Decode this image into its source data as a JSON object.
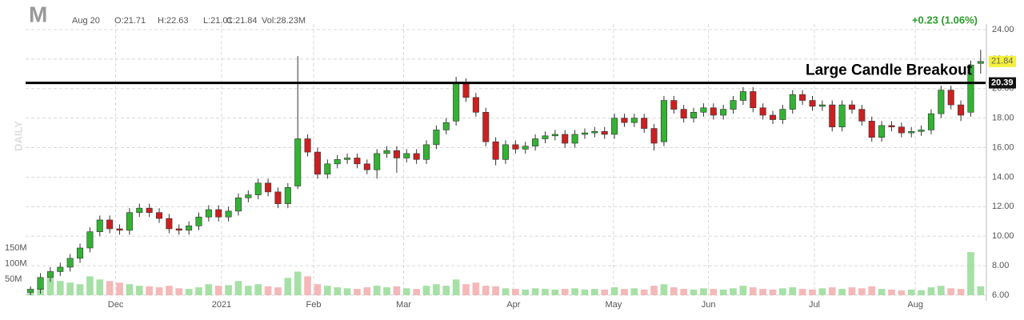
{
  "header": {
    "symbol": "M",
    "date": "Aug 20",
    "open": "O:21.71",
    "high": "H:22.63",
    "low": "L:21.01",
    "close": "C:21.84",
    "volume": "Vol:28.23M",
    "change": "+0.23 (1.06%)"
  },
  "chart_data": {
    "type": "candlestick",
    "watermark": "DAILY",
    "annotation": "Large Candle Breakout",
    "level": 20.39,
    "last": 21.84,
    "up_color": "#33b233",
    "down_color": "#cc2020",
    "up_volume_color": "#a6e0a6",
    "down_volume_color": "#f4b8b8",
    "xlim": [
      -0.5,
      96.5
    ],
    "xticks": [
      {
        "value": 8.6,
        "label": "Dec"
      },
      {
        "value": 19.3,
        "label": "2021"
      },
      {
        "value": 28.6,
        "label": "Feb"
      },
      {
        "value": 37.7,
        "label": "Mar"
      },
      {
        "value": 48.8,
        "label": "Apr"
      },
      {
        "value": 58.9,
        "label": "May"
      },
      {
        "value": 68.5,
        "label": "Jun"
      },
      {
        "value": 79.2,
        "label": "Jul"
      },
      {
        "value": 89.4,
        "label": "Aug"
      }
    ],
    "ylim": [
      6,
      24
    ],
    "yticks": [
      {
        "value": 6,
        "label": "6.00"
      },
      {
        "value": 8,
        "label": "8.00"
      },
      {
        "value": 10,
        "label": "10.00"
      },
      {
        "value": 12,
        "label": "12.00"
      },
      {
        "value": 14,
        "label": "14.00"
      },
      {
        "value": 16,
        "label": "16.00"
      },
      {
        "value": 18,
        "label": "18.00"
      },
      {
        "value": 20,
        "label": "20.00"
      },
      {
        "value": 22,
        "label": "22.00"
      },
      {
        "value": 24,
        "label": "24.00"
      }
    ],
    "volume_lim": [
      0,
      150
    ],
    "volume_ticks": [
      {
        "value": 50,
        "label": "50M"
      },
      {
        "value": 100,
        "label": "100M"
      },
      {
        "value": 150,
        "label": "150M"
      }
    ],
    "grid": true,
    "open": [
      6.2,
      6.4,
      7.2,
      7.6,
      7.9,
      8.5,
      9.2,
      10.3,
      11.1,
      10.5,
      10.4,
      11.6,
      11.9,
      11.6,
      11.2,
      10.5,
      10.4,
      10.7,
      11.3,
      11.8,
      11.3,
      11.7,
      12.6,
      12.8,
      13.6,
      13.0,
      12.2,
      13.4,
      16.6,
      15.7,
      14.2,
      14.9,
      15.2,
      15.3,
      14.9,
      14.5,
      15.6,
      15.8,
      15.3,
      15.6,
      15.2,
      16.2,
      17.2,
      17.8,
      20.4,
      19.4,
      18.4,
      16.4,
      15.2,
      16.2,
      15.9,
      16.1,
      16.6,
      16.8,
      16.9,
      16.3,
      16.9,
      17.0,
      17.1,
      16.9,
      18.0,
      17.7,
      18.0,
      17.3,
      16.4,
      19.2,
      18.6,
      18.0,
      18.4,
      18.7,
      18.2,
      18.6,
      19.2,
      19.8,
      18.7,
      18.2,
      17.9,
      18.6,
      19.6,
      19.2,
      18.8,
      18.9,
      17.4,
      18.9,
      18.6,
      17.8,
      16.7,
      17.5,
      17.4,
      17.0,
      17.1,
      17.2,
      18.3,
      19.9,
      18.9,
      18.4,
      21.71
    ],
    "high": [
      6.6,
      7.5,
      7.9,
      8.2,
      8.8,
      9.5,
      10.6,
      11.4,
      11.4,
      10.8,
      11.9,
      12.2,
      12.2,
      11.9,
      11.5,
      10.8,
      11.0,
      11.6,
      12.1,
      12.1,
      12.0,
      12.9,
      13.1,
      13.9,
      13.9,
      13.3,
      13.6,
      22.2,
      16.9,
      16.0,
      15.2,
      15.5,
      15.6,
      15.6,
      15.2,
      15.9,
      16.1,
      16.1,
      15.9,
      15.9,
      16.5,
      17.5,
      18.0,
      20.8,
      20.7,
      19.7,
      18.7,
      16.7,
      16.5,
      16.5,
      16.4,
      16.9,
      17.1,
      17.2,
      17.2,
      17.2,
      17.3,
      17.4,
      17.4,
      18.3,
      18.3,
      18.3,
      18.3,
      17.6,
      19.5,
      19.5,
      18.9,
      18.7,
      19.0,
      19.0,
      18.9,
      19.5,
      20.1,
      20.1,
      19.0,
      18.5,
      18.9,
      19.9,
      19.9,
      19.5,
      19.2,
      19.2,
      19.2,
      19.2,
      18.9,
      18.1,
      17.8,
      17.8,
      17.7,
      17.4,
      17.5,
      18.6,
      20.2,
      20.2,
      19.2,
      21.9,
      22.63
    ],
    "low": [
      6.0,
      6.1,
      6.9,
      7.3,
      7.6,
      8.2,
      8.9,
      10.0,
      10.2,
      10.1,
      10.1,
      11.3,
      11.3,
      10.9,
      10.2,
      10.1,
      10.1,
      10.4,
      11.0,
      11.0,
      11.0,
      11.4,
      12.3,
      12.5,
      12.7,
      11.9,
      11.9,
      13.2,
      15.4,
      13.9,
      13.9,
      14.6,
      14.9,
      14.6,
      14.2,
      13.9,
      15.3,
      14.3,
      15.0,
      14.9,
      14.9,
      15.9,
      16.9,
      17.5,
      19.1,
      18.1,
      16.1,
      14.8,
      14.9,
      15.6,
      15.6,
      15.8,
      16.3,
      16.5,
      16.0,
      16.0,
      16.6,
      16.7,
      16.6,
      16.6,
      17.4,
      17.4,
      17.0,
      15.8,
      16.1,
      18.3,
      17.7,
      17.7,
      18.1,
      17.9,
      17.9,
      18.3,
      18.9,
      18.4,
      17.9,
      17.6,
      17.6,
      18.3,
      18.9,
      18.5,
      18.5,
      17.1,
      17.1,
      18.3,
      17.5,
      16.4,
      16.4,
      17.1,
      16.7,
      16.7,
      16.8,
      16.9,
      18.0,
      18.6,
      17.8,
      18.1,
      21.01
    ],
    "close": [
      6.4,
      7.2,
      7.6,
      7.9,
      8.5,
      9.2,
      10.3,
      11.1,
      10.5,
      10.4,
      11.6,
      11.9,
      11.6,
      11.2,
      10.5,
      10.4,
      10.7,
      11.3,
      11.8,
      11.3,
      11.7,
      12.6,
      12.8,
      13.6,
      13.0,
      12.2,
      13.3,
      16.6,
      15.7,
      14.2,
      14.9,
      15.2,
      15.3,
      14.9,
      14.5,
      15.6,
      15.8,
      15.3,
      15.6,
      15.2,
      16.2,
      17.2,
      17.7,
      20.4,
      19.4,
      18.4,
      16.4,
      15.2,
      16.2,
      15.9,
      16.1,
      16.6,
      16.8,
      16.9,
      16.3,
      16.9,
      17.0,
      17.1,
      16.9,
      18.0,
      17.7,
      18.0,
      17.3,
      16.3,
      19.2,
      18.6,
      18.0,
      18.4,
      18.7,
      18.2,
      18.6,
      19.2,
      19.8,
      18.7,
      18.2,
      17.9,
      18.6,
      19.6,
      19.2,
      18.8,
      18.9,
      17.4,
      18.9,
      18.6,
      17.8,
      16.7,
      17.5,
      17.4,
      17.0,
      17.1,
      17.2,
      18.3,
      19.9,
      18.9,
      18.2,
      21.6,
      21.84
    ],
    "volume": [
      20,
      25,
      55,
      45,
      40,
      35,
      60,
      50,
      45,
      40,
      35,
      30,
      28,
      25,
      30,
      22,
      20,
      25,
      35,
      30,
      32,
      45,
      30,
      35,
      28,
      25,
      55,
      75,
      60,
      35,
      30,
      25,
      22,
      20,
      25,
      30,
      25,
      28,
      22,
      20,
      30,
      35,
      30,
      50,
      35,
      40,
      30,
      28,
      22,
      20,
      18,
      22,
      20,
      18,
      20,
      22,
      18,
      20,
      18,
      25,
      20,
      22,
      18,
      30,
      35,
      25,
      20,
      18,
      22,
      20,
      18,
      22,
      30,
      25,
      20,
      18,
      22,
      25,
      20,
      18,
      22,
      25,
      20,
      25,
      22,
      28,
      20,
      18,
      15,
      18,
      16,
      25,
      30,
      22,
      20,
      137,
      28.23
    ]
  }
}
